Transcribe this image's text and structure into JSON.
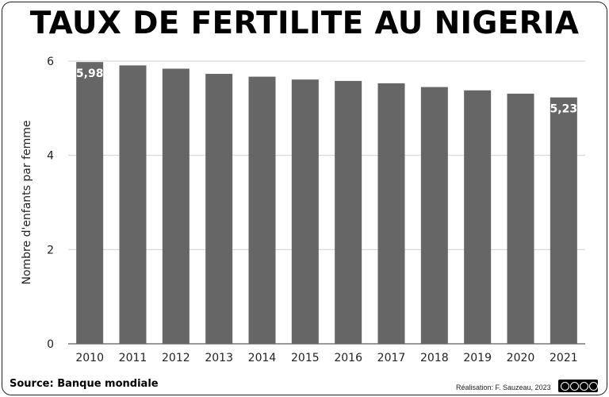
{
  "chart_data": {
    "type": "bar",
    "title": "TAUX DE FERTILITE AU NIGERIA",
    "ylabel": "Nombre d'enfants par femme",
    "xlabel": "",
    "categories": [
      "2010",
      "2011",
      "2012",
      "2013",
      "2014",
      "2015",
      "2016",
      "2017",
      "2018",
      "2019",
      "2020",
      "2021"
    ],
    "values": [
      5.98,
      5.91,
      5.84,
      5.73,
      5.67,
      5.61,
      5.58,
      5.53,
      5.45,
      5.38,
      5.31,
      5.23
    ],
    "data_labels": [
      {
        "index": 0,
        "text": "5,98"
      },
      {
        "index": 11,
        "text": "5,23"
      }
    ],
    "ylim": [
      0,
      6
    ],
    "yticks": [
      0,
      2,
      4,
      6
    ],
    "grid": true,
    "bar_color": "#666666",
    "label_color": "#ffffff"
  },
  "footer": {
    "source": "Source: Banque mondiale",
    "credit": "Réalisation: F. Sauzeau, 2023"
  }
}
